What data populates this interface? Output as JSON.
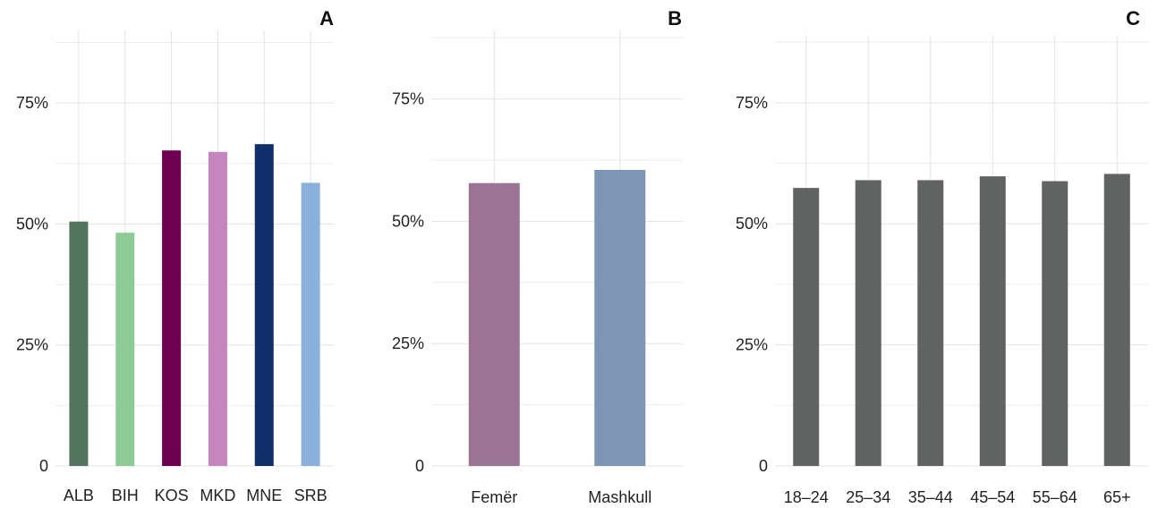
{
  "chart_data": [
    {
      "type": "bar",
      "panel_label": "A",
      "categories": [
        "ALB",
        "BIH",
        "KOS",
        "MKD",
        "MNE",
        "SRB"
      ],
      "values": [
        0.505,
        0.482,
        0.652,
        0.649,
        0.665,
        0.585
      ],
      "colors": [
        "#53745f",
        "#8ccb96",
        "#6f0051",
        "#c486bd",
        "#0f2e6a",
        "#8ab0dc"
      ],
      "ylim": [
        0,
        0.9
      ],
      "yticks": [
        0,
        0.25,
        0.5,
        0.75
      ],
      "ytick_labels": [
        "0",
        "25%",
        "50%",
        "75%"
      ],
      "grid": true
    },
    {
      "type": "bar",
      "panel_label": "B",
      "categories": [
        "Femër",
        "Mashkull"
      ],
      "values": [
        0.578,
        0.605
      ],
      "colors": [
        "#9c7493",
        "#7f95b6"
      ],
      "ylim": [
        0,
        0.89
      ],
      "yticks": [
        0,
        0.25,
        0.5,
        0.75
      ],
      "ytick_labels": [
        "0",
        "25%",
        "50%",
        "75%"
      ],
      "grid": true
    },
    {
      "type": "bar",
      "panel_label": "C",
      "categories": [
        "18–24",
        "25–34",
        "35–44",
        "45–54",
        "55–64",
        "65+"
      ],
      "values": [
        0.574,
        0.59,
        0.59,
        0.598,
        0.588,
        0.603
      ],
      "colors": [
        "#616362",
        "#616362",
        "#616362",
        "#616362",
        "#616362",
        "#616362"
      ],
      "ylim": [
        0,
        0.89
      ],
      "yticks": [
        0,
        0.25,
        0.5,
        0.75
      ],
      "ytick_labels": [
        "0",
        "25%",
        "50%",
        "75%"
      ],
      "grid": true
    }
  ]
}
